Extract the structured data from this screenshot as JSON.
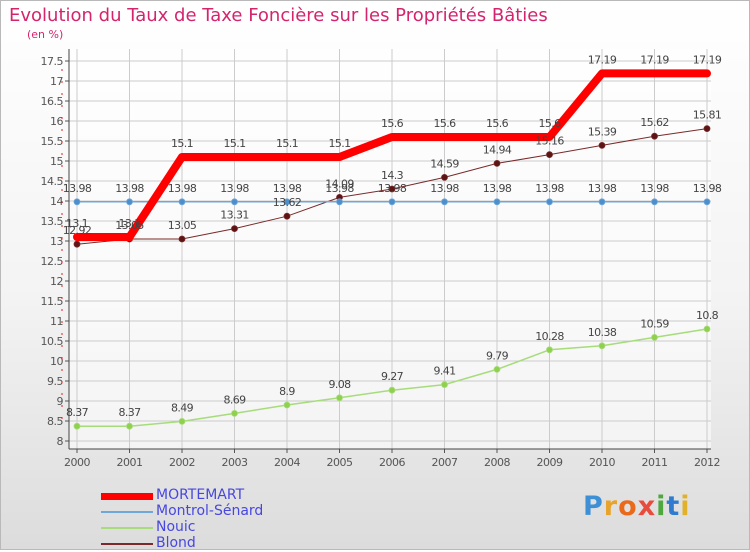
{
  "header": {
    "title": "Evolution du Taux de Taxe Foncière sur les Propriétés Bâties",
    "unit_label": "(en %)"
  },
  "logo": {
    "text": "Proxiti",
    "colors": [
      "#3d8fd6",
      "#e8a32b",
      "#ea6a1c",
      "#e84c3d",
      "#4fa83d",
      "#2e7bcf",
      "#e2b12a"
    ]
  },
  "colors": {
    "title": "#d4246e",
    "axis_text": "#555555",
    "legend_text": "#4747e0",
    "grid": "#cccccc"
  },
  "chart_data": {
    "type": "line",
    "title": "Evolution du Taux de Taxe Foncière sur les Propriétés Bâties",
    "ylabel": "(en %)",
    "xlabel": "",
    "ylim": [
      8,
      17.5
    ],
    "yticks": [
      "8",
      "8.5",
      "9",
      "9.5",
      "10",
      "10.5",
      "11",
      "11.5",
      "12",
      "12.5",
      "13",
      "13.5",
      "14",
      "14.5",
      "15",
      "15.5",
      "16",
      "16.5",
      "17",
      "17.5"
    ],
    "categories": [
      "2000",
      "2001",
      "2002",
      "2003",
      "2004",
      "2005",
      "2006",
      "2007",
      "2008",
      "2009",
      "2010",
      "2011",
      "2012"
    ],
    "grid": true,
    "legend_position": "bottom-left",
    "series": [
      {
        "name": "MORTEMART",
        "color": "#ff0000",
        "values": [
          13.1,
          13.1,
          15.1,
          15.1,
          15.1,
          15.1,
          15.6,
          15.6,
          15.6,
          15.6,
          17.19,
          17.19,
          17.19
        ],
        "labels": [
          "13.1",
          "13.1",
          "15.1",
          "15.1",
          "15.1",
          "15.1",
          "15.6",
          "15.6",
          "15.6",
          "15.6",
          "17.19",
          "17.19",
          "17.19"
        ]
      },
      {
        "name": "Montrol-Sénard",
        "color": "#6fa8d8",
        "values": [
          13.98,
          13.98,
          13.98,
          13.98,
          13.98,
          13.98,
          13.98,
          13.98,
          13.98,
          13.98,
          13.98,
          13.98,
          13.98
        ],
        "labels": [
          "13.98",
          "13.98",
          "13.98",
          "13.98",
          "13.98",
          "13.98",
          "13.98",
          "13.98",
          "13.98",
          "13.98",
          "13.98",
          "13.98",
          "13.98"
        ]
      },
      {
        "name": "Nouic",
        "color": "#a6dc7a",
        "values": [
          8.37,
          8.37,
          8.49,
          8.69,
          8.9,
          9.08,
          9.27,
          9.41,
          9.79,
          10.28,
          10.38,
          10.59,
          10.8
        ],
        "labels": [
          "8.37",
          "8.37",
          "8.49",
          "8.69",
          "8.9",
          "9.08",
          "9.27",
          "9.41",
          "9.79",
          "10.28",
          "10.38",
          "10.59",
          "10.8"
        ]
      },
      {
        "name": "Blond",
        "color": "#7a2a2a",
        "values": [
          12.92,
          13.05,
          13.05,
          13.31,
          13.62,
          14.09,
          14.3,
          14.59,
          14.94,
          15.16,
          15.39,
          15.62,
          15.81
        ],
        "labels": [
          "12.92",
          "13.05",
          "13.05",
          "13.31",
          "13.62",
          "14.09",
          "14.3",
          "14.59",
          "14.94",
          "15.16",
          "15.39",
          "15.62",
          "15.81"
        ]
      }
    ]
  }
}
